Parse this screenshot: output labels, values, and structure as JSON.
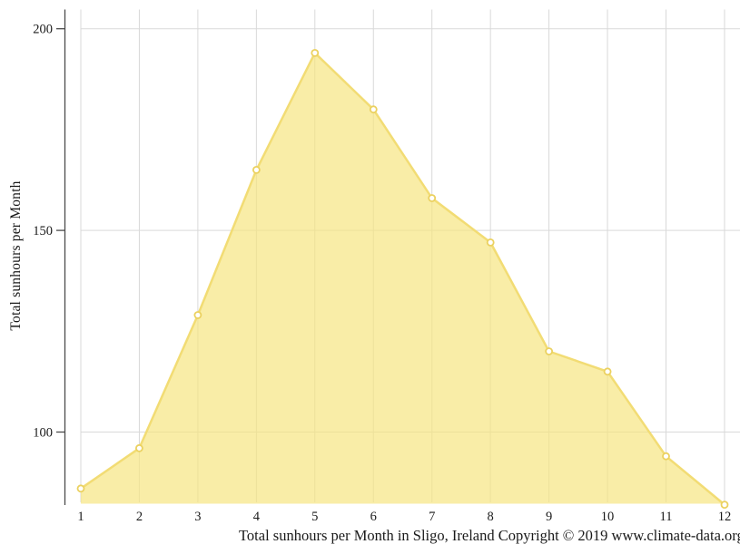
{
  "chart_data": {
    "type": "area",
    "categories": [
      "1",
      "2",
      "3",
      "4",
      "5",
      "6",
      "7",
      "8",
      "9",
      "10",
      "11",
      "12"
    ],
    "values": [
      86,
      96,
      129,
      165,
      194,
      180,
      158,
      147,
      120,
      115,
      94,
      82
    ],
    "title": "",
    "caption": "Total sunhours per Month in Sligo, Ireland Copyright © 2019 www.climate-data.org",
    "xlabel": "",
    "ylabel": "Total sunhours per Month",
    "yticks": [
      100,
      150,
      200
    ],
    "ylim": [
      82,
      207
    ],
    "grid": true,
    "legend": false,
    "marker": "open-circle",
    "colors": {
      "area_fill": "#F6E47E",
      "area_fill_opacity": 0.68,
      "line": "#F2DC74",
      "marker_fill": "#FFFFFF",
      "marker_stroke": "#EBD160",
      "gridline": "#D9D9D9",
      "axis_spine": "#4A4A4A",
      "text": "#1A1A1A"
    }
  }
}
